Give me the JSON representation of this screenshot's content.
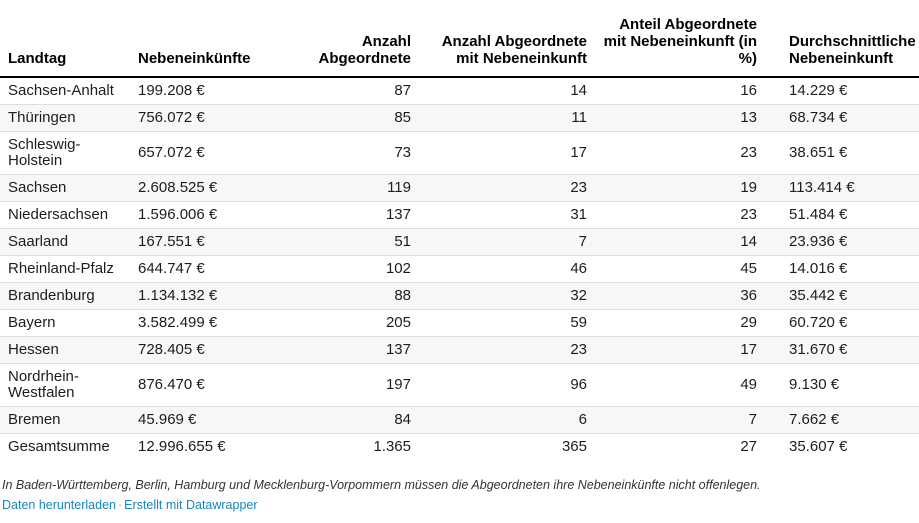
{
  "chart_data": {
    "type": "table",
    "columns": [
      "Landtag",
      "Nebeneinkünfte",
      "Anzahl Abgeordnete",
      "Anzahl Abgeordnete mit Nebeneinkunft",
      "Anteil Abgeordnete mit Nebeneinkunft (in %)",
      "Durchschnittliche Nebeneinkunft"
    ],
    "column_align": [
      "left",
      "left",
      "right",
      "right",
      "right",
      "left"
    ],
    "rows": [
      [
        "Sachsen-Anhalt",
        "199.208 €",
        "87",
        "14",
        "16",
        "14.229 €"
      ],
      [
        "Thüringen",
        "756.072 €",
        "85",
        "11",
        "13",
        "68.734 €"
      ],
      [
        "Schleswig-Holstein",
        "657.072 €",
        "73",
        "17",
        "23",
        "38.651 €"
      ],
      [
        "Sachsen",
        "2.608.525 €",
        "119",
        "23",
        "19",
        "113.414 €"
      ],
      [
        "Niedersachsen",
        "1.596.006 €",
        "137",
        "31",
        "23",
        "51.484 €"
      ],
      [
        "Saarland",
        "167.551 €",
        "51",
        "7",
        "14",
        "23.936 €"
      ],
      [
        "Rheinland-Pfalz",
        "644.747 €",
        "102",
        "46",
        "45",
        "14.016 €"
      ],
      [
        "Brandenburg",
        "1.134.132 €",
        "88",
        "32",
        "36",
        "35.442 €"
      ],
      [
        "Bayern",
        "3.582.499 €",
        "205",
        "59",
        "29",
        "60.720 €"
      ],
      [
        "Hessen",
        "728.405 €",
        "137",
        "23",
        "17",
        "31.670 €"
      ],
      [
        "Nordrhein-Westfalen",
        "876.470 €",
        "197",
        "96",
        "49",
        "9.130 €"
      ],
      [
        "Bremen",
        "45.969 €",
        "84",
        "6",
        "7",
        "7.662 €"
      ],
      [
        "Gesamtsumme",
        "12.996.655 €",
        "1.365",
        "365",
        "27",
        "35.607 €"
      ]
    ],
    "grid": "row-stripes",
    "legend_position": "none"
  },
  "footer": {
    "note": "In Baden-Württemberg, Berlin, Hamburg und Mecklenburg-Vorpommern müssen die Abgeordneten ihre Nebeneinkünfte nicht offenlegen.",
    "separator": "·",
    "links": [
      {
        "label": "Daten herunterladen"
      },
      {
        "label": "Erstellt mit Datawrapper"
      }
    ]
  },
  "colors": {
    "link_blue": "#1786be",
    "stripe": "#f7f7f7",
    "row_border": "#dedede",
    "header_border": "#000000",
    "text": "#1d1d1d"
  }
}
